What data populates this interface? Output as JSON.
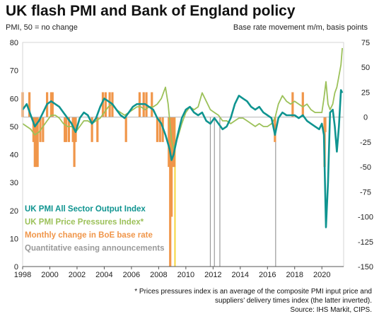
{
  "title": "UK flash PMI and Bank of England policy",
  "left_axis_label": "PMI, 50 = no change",
  "right_axis_label": "Base rate movement m/m, basis points",
  "footnote_1": "* Prices pressures index is an average of the composite PMI input price and",
  "footnote_2": "suppliers’ delivery times index (the latter inverted).",
  "source": "Source: IHS Markit, CIPS.",
  "colors": {
    "output": "#0f9490",
    "prices": "#9cc15a",
    "boe": "#f0964a",
    "qe": "#9a9a9a",
    "qe_highlight": "#f5d53a"
  },
  "chart_data": {
    "type": "line",
    "x_ticks": [
      "1998",
      "2000",
      "2002",
      "2004",
      "2006",
      "2008",
      "2010",
      "2012",
      "2014",
      "2016",
      "2018",
      "2020"
    ],
    "xlim": [
      1998,
      2021.6
    ],
    "ylim_left": [
      0,
      80
    ],
    "ylim_right": [
      -150,
      75
    ],
    "left_ticks": [
      "0",
      "10",
      "20",
      "30",
      "40",
      "50",
      "60",
      "70",
      "80"
    ],
    "right_ticks": [
      "75",
      "50",
      "25",
      "0",
      "-25",
      "-50",
      "-75",
      "-100",
      "-125",
      "-150"
    ],
    "series": [
      {
        "name": "UK PMI All Sector Output Index",
        "axis": "left",
        "points": [
          [
            1998.0,
            56
          ],
          [
            1998.3,
            58
          ],
          [
            1998.6,
            54
          ],
          [
            1998.9,
            50
          ],
          [
            1999.2,
            52
          ],
          [
            1999.5,
            55
          ],
          [
            1999.8,
            58
          ],
          [
            2000.1,
            59
          ],
          [
            2000.4,
            58
          ],
          [
            2000.7,
            57
          ],
          [
            2001.0,
            55
          ],
          [
            2001.3,
            53
          ],
          [
            2001.6,
            51
          ],
          [
            2001.9,
            48
          ],
          [
            2002.2,
            53
          ],
          [
            2002.5,
            55
          ],
          [
            2002.8,
            54
          ],
          [
            2003.1,
            51
          ],
          [
            2003.4,
            53
          ],
          [
            2003.7,
            57
          ],
          [
            2004.0,
            60
          ],
          [
            2004.3,
            59
          ],
          [
            2004.6,
            58
          ],
          [
            2004.9,
            56
          ],
          [
            2005.2,
            54
          ],
          [
            2005.5,
            53
          ],
          [
            2005.8,
            55
          ],
          [
            2006.1,
            57
          ],
          [
            2006.4,
            58
          ],
          [
            2006.7,
            58
          ],
          [
            2007.0,
            58
          ],
          [
            2007.3,
            57
          ],
          [
            2007.6,
            56
          ],
          [
            2007.9,
            53
          ],
          [
            2008.2,
            51
          ],
          [
            2008.5,
            47
          ],
          [
            2008.8,
            42
          ],
          [
            2008.95,
            38
          ],
          [
            2009.1,
            40
          ],
          [
            2009.4,
            47
          ],
          [
            2009.7,
            53
          ],
          [
            2010.0,
            56
          ],
          [
            2010.3,
            57
          ],
          [
            2010.6,
            55
          ],
          [
            2010.9,
            54
          ],
          [
            2011.2,
            55
          ],
          [
            2011.5,
            52
          ],
          [
            2011.8,
            51
          ],
          [
            2012.1,
            53
          ],
          [
            2012.4,
            51
          ],
          [
            2012.7,
            49
          ],
          [
            2013.0,
            50
          ],
          [
            2013.3,
            53
          ],
          [
            2013.6,
            58
          ],
          [
            2013.9,
            61
          ],
          [
            2014.2,
            60
          ],
          [
            2014.5,
            59
          ],
          [
            2014.8,
            57
          ],
          [
            2015.1,
            56
          ],
          [
            2015.4,
            57
          ],
          [
            2015.7,
            55
          ],
          [
            2016.0,
            54
          ],
          [
            2016.3,
            53
          ],
          [
            2016.55,
            47
          ],
          [
            2016.8,
            53
          ],
          [
            2017.1,
            55
          ],
          [
            2017.4,
            54
          ],
          [
            2017.7,
            54
          ],
          [
            2018.0,
            54
          ],
          [
            2018.3,
            53
          ],
          [
            2018.6,
            54
          ],
          [
            2018.9,
            52
          ],
          [
            2019.2,
            51
          ],
          [
            2019.5,
            50
          ],
          [
            2019.8,
            49
          ],
          [
            2020.0,
            51
          ],
          [
            2020.15,
            47
          ],
          [
            2020.3,
            14
          ],
          [
            2020.45,
            30
          ],
          [
            2020.6,
            55
          ],
          [
            2020.8,
            56
          ],
          [
            2020.95,
            50
          ],
          [
            2021.1,
            41
          ],
          [
            2021.25,
            50
          ],
          [
            2021.4,
            63
          ],
          [
            2021.5,
            62
          ]
        ]
      },
      {
        "name": "UK PMI Price Pressures Index*",
        "axis": "left",
        "points": [
          [
            1998.0,
            51
          ],
          [
            1998.3,
            50
          ],
          [
            1998.6,
            49
          ],
          [
            1998.9,
            47
          ],
          [
            1999.2,
            48
          ],
          [
            1999.5,
            50
          ],
          [
            1999.8,
            52
          ],
          [
            2000.1,
            54
          ],
          [
            2000.4,
            54
          ],
          [
            2000.7,
            53
          ],
          [
            2001.0,
            51
          ],
          [
            2001.3,
            50
          ],
          [
            2001.6,
            50
          ],
          [
            2001.9,
            48
          ],
          [
            2002.2,
            50
          ],
          [
            2002.5,
            52
          ],
          [
            2002.8,
            52
          ],
          [
            2003.1,
            51
          ],
          [
            2003.4,
            52
          ],
          [
            2003.7,
            53
          ],
          [
            2004.0,
            55
          ],
          [
            2004.3,
            57
          ],
          [
            2004.6,
            58
          ],
          [
            2004.9,
            56
          ],
          [
            2005.2,
            55
          ],
          [
            2005.5,
            54
          ],
          [
            2005.8,
            55
          ],
          [
            2006.1,
            56
          ],
          [
            2006.4,
            57
          ],
          [
            2006.7,
            57
          ],
          [
            2007.0,
            56
          ],
          [
            2007.3,
            57
          ],
          [
            2007.6,
            57
          ],
          [
            2007.9,
            58
          ],
          [
            2008.2,
            60
          ],
          [
            2008.5,
            64
          ],
          [
            2008.7,
            58
          ],
          [
            2008.95,
            45
          ],
          [
            2009.1,
            42
          ],
          [
            2009.4,
            46
          ],
          [
            2009.7,
            51
          ],
          [
            2010.0,
            55
          ],
          [
            2010.3,
            57
          ],
          [
            2010.6,
            56
          ],
          [
            2010.9,
            57
          ],
          [
            2011.2,
            62
          ],
          [
            2011.5,
            59
          ],
          [
            2011.8,
            56
          ],
          [
            2012.1,
            55
          ],
          [
            2012.4,
            54
          ],
          [
            2012.7,
            52
          ],
          [
            2013.0,
            52
          ],
          [
            2013.3,
            51
          ],
          [
            2013.6,
            52
          ],
          [
            2013.9,
            53
          ],
          [
            2014.2,
            53
          ],
          [
            2014.5,
            52
          ],
          [
            2014.8,
            51
          ],
          [
            2015.1,
            50
          ],
          [
            2015.4,
            51
          ],
          [
            2015.7,
            50
          ],
          [
            2016.0,
            50
          ],
          [
            2016.3,
            51
          ],
          [
            2016.55,
            53
          ],
          [
            2016.8,
            58
          ],
          [
            2017.1,
            61
          ],
          [
            2017.4,
            59
          ],
          [
            2017.7,
            58
          ],
          [
            2018.0,
            59
          ],
          [
            2018.3,
            58
          ],
          [
            2018.6,
            57
          ],
          [
            2018.9,
            58
          ],
          [
            2019.2,
            56
          ],
          [
            2019.5,
            55
          ],
          [
            2019.8,
            55
          ],
          [
            2020.0,
            55
          ],
          [
            2020.15,
            60
          ],
          [
            2020.3,
            66
          ],
          [
            2020.45,
            58
          ],
          [
            2020.6,
            56
          ],
          [
            2020.8,
            58
          ],
          [
            2020.95,
            62
          ],
          [
            2021.1,
            64
          ],
          [
            2021.25,
            68
          ],
          [
            2021.4,
            72
          ],
          [
            2021.5,
            78
          ]
        ]
      },
      {
        "name": "Monthly change in BoE base rate",
        "axis": "right",
        "bars": [
          [
            1998.0,
            25
          ],
          [
            1998.5,
            25
          ],
          [
            1998.8,
            -25
          ],
          [
            1998.9,
            -50
          ],
          [
            1999.0,
            -50
          ],
          [
            1999.1,
            -50
          ],
          [
            1999.3,
            -25
          ],
          [
            1999.5,
            -25
          ],
          [
            1999.8,
            25
          ],
          [
            2000.1,
            25
          ],
          [
            2000.2,
            25
          ],
          [
            2001.1,
            -25
          ],
          [
            2001.2,
            -25
          ],
          [
            2001.4,
            -25
          ],
          [
            2001.7,
            -25
          ],
          [
            2001.8,
            -50
          ],
          [
            2001.9,
            -25
          ],
          [
            2003.1,
            -25
          ],
          [
            2003.5,
            -25
          ],
          [
            2003.9,
            25
          ],
          [
            2004.1,
            25
          ],
          [
            2004.4,
            25
          ],
          [
            2004.6,
            25
          ],
          [
            2005.6,
            -25
          ],
          [
            2006.6,
            25
          ],
          [
            2006.9,
            25
          ],
          [
            2007.1,
            25
          ],
          [
            2007.5,
            25
          ],
          [
            2007.9,
            -25
          ],
          [
            2008.1,
            -25
          ],
          [
            2008.3,
            -25
          ],
          [
            2008.75,
            -50
          ],
          [
            2008.85,
            -150
          ],
          [
            2008.95,
            -100
          ],
          [
            2009.05,
            -50
          ],
          [
            2009.15,
            -50
          ],
          [
            2016.55,
            -25
          ],
          [
            2017.85,
            25
          ],
          [
            2018.6,
            25
          ],
          [
            2020.2,
            -50
          ],
          [
            2020.25,
            -15
          ]
        ]
      },
      {
        "name": "Quantitative easing announcements",
        "axis": "none",
        "events": [
          2009.2,
          2011.8,
          2012.1,
          2012.5,
          2016.6
        ]
      }
    ],
    "legend_placement": "bottom-left"
  }
}
